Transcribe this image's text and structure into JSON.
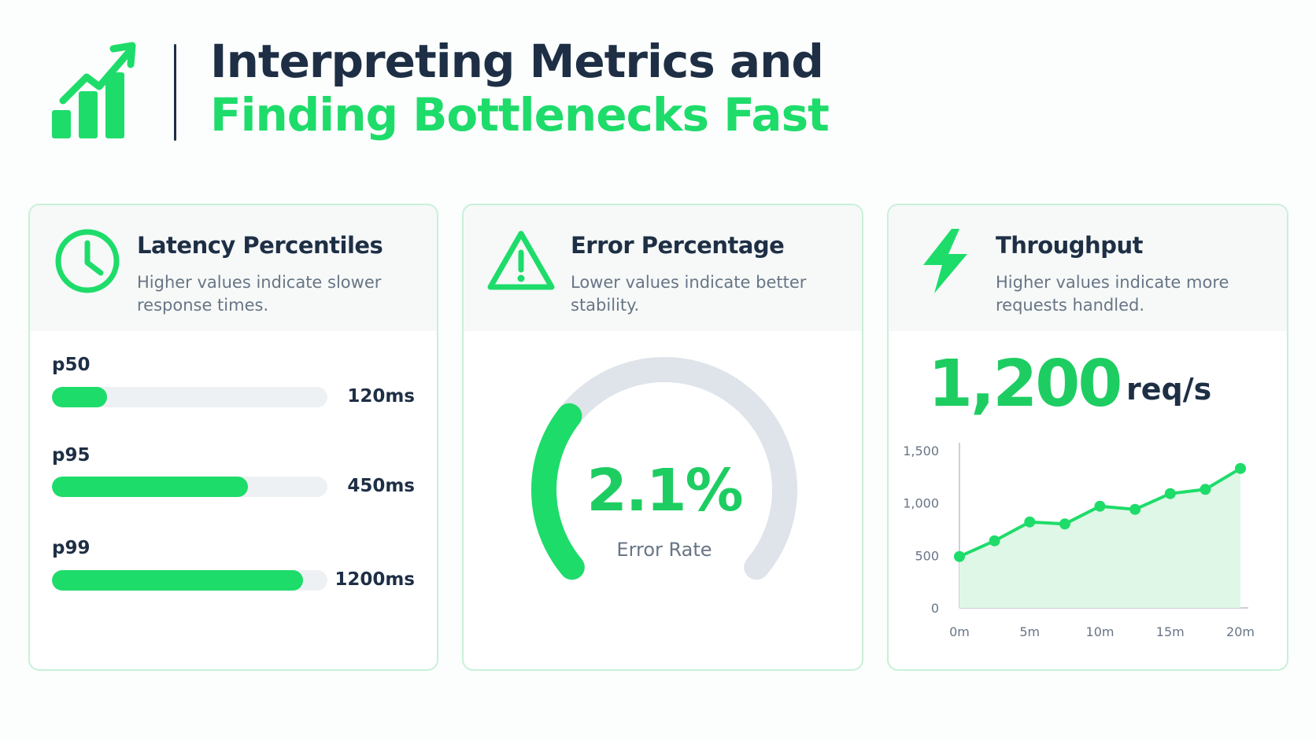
{
  "header": {
    "title_line1": "Interpreting Metrics and",
    "title_line2": "Finding Bottlenecks Fast",
    "logo_icon": "growth-bar-chart-icon"
  },
  "colors": {
    "accent": "#1edc6a",
    "text_dark": "#1e2f45",
    "text_muted": "#687585",
    "track": "#eef1f4",
    "card_border": "#c8f0d8"
  },
  "latency": {
    "icon": "clock-icon",
    "title": "Latency Percentiles",
    "description": "Higher values indicate slower response times.",
    "items": [
      {
        "label": "p50",
        "value": "120ms",
        "fill_fraction": 0.2
      },
      {
        "label": "p95",
        "value": "450ms",
        "fill_fraction": 0.71
      },
      {
        "label": "p99",
        "value": "1200ms",
        "fill_fraction": 0.91
      }
    ]
  },
  "error": {
    "icon": "warning-triangle-icon",
    "title": "Error Percentage",
    "description": "Lower values indicate better stability.",
    "value": "2.1%",
    "label": "Error Rate",
    "gauge_fill_fraction": 0.3
  },
  "throughput": {
    "icon": "lightning-bolt-icon",
    "title": "Throughput",
    "description": "Higher values indicate more requests handled.",
    "value": "1,200",
    "unit": "req/s"
  },
  "chart_data": {
    "type": "area",
    "x": [
      0,
      2.5,
      5,
      7.5,
      10,
      12.5,
      15,
      17.5,
      20
    ],
    "values": [
      490,
      640,
      820,
      800,
      970,
      940,
      1090,
      1130,
      1330
    ],
    "xticks": [
      "0m",
      "5m",
      "10m",
      "15m",
      "20m"
    ],
    "xtick_values": [
      0,
      5,
      10,
      15,
      20
    ],
    "yticks": [
      "0",
      "500",
      "1,000",
      "1,500"
    ],
    "ytick_values": [
      0,
      500,
      1000,
      1500
    ],
    "xlim": [
      0,
      20
    ],
    "ylim": [
      0,
      1500
    ],
    "grid": false
  }
}
